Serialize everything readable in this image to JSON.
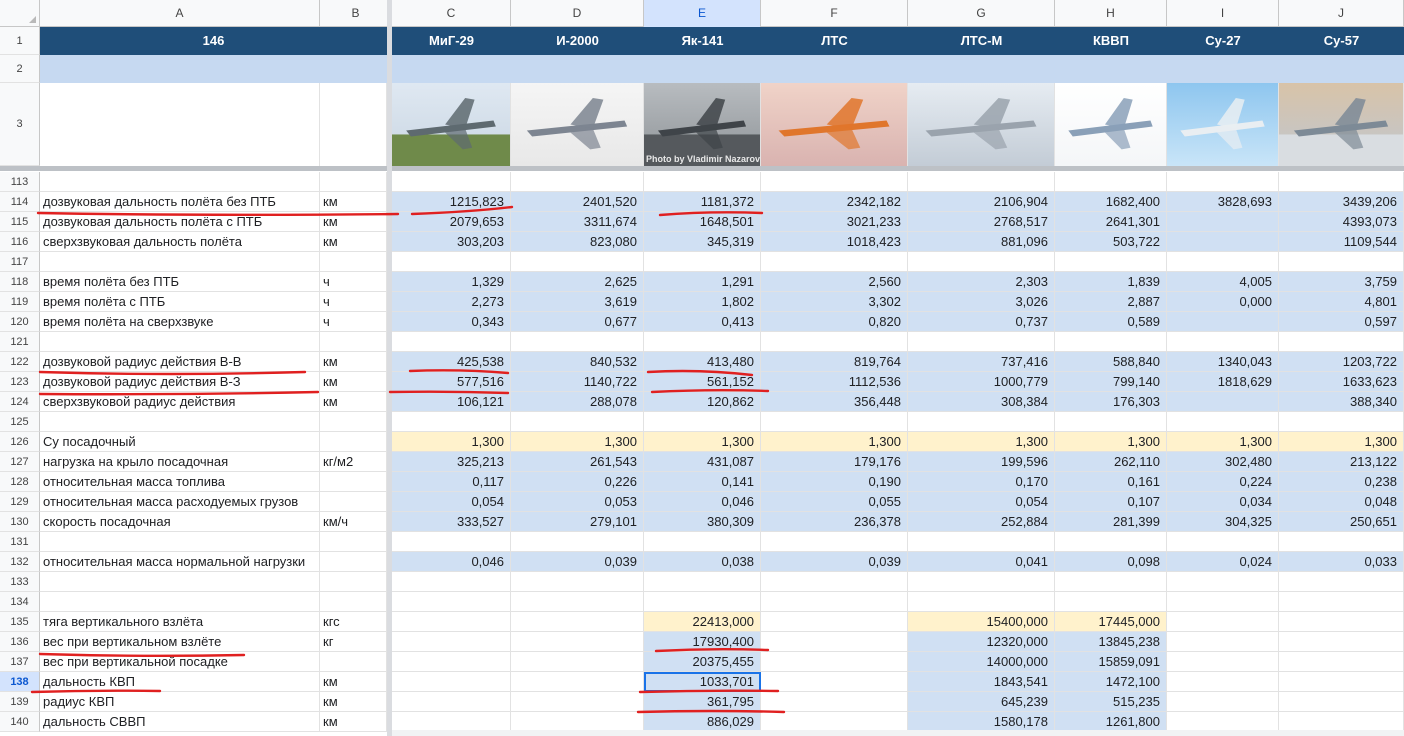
{
  "corner_label": "",
  "columns": [
    "A",
    "B",
    "C",
    "D",
    "E",
    "F",
    "G",
    "H",
    "I",
    "J"
  ],
  "selected_column": "E",
  "header_row": {
    "a1": "146",
    "aircraft": [
      "МиГ-29",
      "И-2000",
      "Як-141",
      "ЛТС",
      "ЛТС-М",
      "КВВП",
      "Су-27",
      "Су-57"
    ]
  },
  "frozen_rows": [
    "1",
    "2",
    "3"
  ],
  "photo_credit": "Photo by Vladimir Nazarov",
  "selected_row": "138",
  "rows": [
    {
      "n": "113",
      "label": "",
      "unit": "",
      "vals": [
        "",
        "",
        "",
        "",
        "",
        "",
        "",
        ""
      ],
      "fill": "none"
    },
    {
      "n": "114",
      "label": "дозвуковая дальность полёта без ПТБ",
      "unit": "км",
      "vals": [
        "1215,823",
        "2401,520",
        "1181,372",
        "2342,182",
        "2106,904",
        "1682,400",
        "3828,693",
        "3439,206"
      ],
      "fill": "blue"
    },
    {
      "n": "115",
      "label": "дозвуковая дальность полёта с ПТБ",
      "unit": "км",
      "vals": [
        "2079,653",
        "3311,674",
        "1648,501",
        "3021,233",
        "2768,517",
        "2641,301",
        "",
        "4393,073"
      ],
      "fill": "blue"
    },
    {
      "n": "116",
      "label": "сверхзвуковая дальность полёта",
      "unit": "км",
      "vals": [
        "303,203",
        "823,080",
        "345,319",
        "1018,423",
        "881,096",
        "503,722",
        "",
        "1109,544"
      ],
      "fill": "blue"
    },
    {
      "n": "117",
      "label": "",
      "unit": "",
      "vals": [
        "",
        "",
        "",
        "",
        "",
        "",
        "",
        ""
      ],
      "fill": "none"
    },
    {
      "n": "118",
      "label": "время полёта без ПТБ",
      "unit": "ч",
      "vals": [
        "1,329",
        "2,625",
        "1,291",
        "2,560",
        "2,303",
        "1,839",
        "4,005",
        "3,759"
      ],
      "fill": "blue"
    },
    {
      "n": "119",
      "label": "время полёта с ПТБ",
      "unit": "ч",
      "vals": [
        "2,273",
        "3,619",
        "1,802",
        "3,302",
        "3,026",
        "2,887",
        "0,000",
        "4,801"
      ],
      "fill": "blue"
    },
    {
      "n": "120",
      "label": "время полёта на сверхзвуке",
      "unit": "ч",
      "vals": [
        "0,343",
        "0,677",
        "0,413",
        "0,820",
        "0,737",
        "0,589",
        "",
        "0,597"
      ],
      "fill": "blue"
    },
    {
      "n": "121",
      "label": "",
      "unit": "",
      "vals": [
        "",
        "",
        "",
        "",
        "",
        "",
        "",
        ""
      ],
      "fill": "none"
    },
    {
      "n": "122",
      "label": "дозвуковой радиус действия  В-В",
      "unit": "км",
      "vals": [
        "425,538",
        "840,532",
        "413,480",
        "819,764",
        "737,416",
        "588,840",
        "1340,043",
        "1203,722"
      ],
      "fill": "blue"
    },
    {
      "n": "123",
      "label": "дозвуковой радиус действия  В-З",
      "unit": "км",
      "vals": [
        "577,516",
        "1140,722",
        "561,152",
        "1112,536",
        "1000,779",
        "799,140",
        "1818,629",
        "1633,623"
      ],
      "fill": "blue"
    },
    {
      "n": "124",
      "label": "сверхзвуковой радиус действия",
      "unit": "км",
      "vals": [
        "106,121",
        "288,078",
        "120,862",
        "356,448",
        "308,384",
        "176,303",
        "",
        "388,340"
      ],
      "fill": "blue"
    },
    {
      "n": "125",
      "label": "",
      "unit": "",
      "vals": [
        "",
        "",
        "",
        "",
        "",
        "",
        "",
        ""
      ],
      "fill": "none"
    },
    {
      "n": "126",
      "label": "Cy посадочный",
      "unit": "",
      "vals": [
        "1,300",
        "1,300",
        "1,300",
        "1,300",
        "1,300",
        "1,300",
        "1,300",
        "1,300"
      ],
      "fill": "yellow"
    },
    {
      "n": "127",
      "label": "нагрузка на крыло посадочная",
      "unit": "кг/м2",
      "vals": [
        "325,213",
        "261,543",
        "431,087",
        "179,176",
        "199,596",
        "262,110",
        "302,480",
        "213,122"
      ],
      "fill": "blue"
    },
    {
      "n": "128",
      "label": "относительная масса топлива",
      "unit": "",
      "vals": [
        "0,117",
        "0,226",
        "0,141",
        "0,190",
        "0,170",
        "0,161",
        "0,224",
        "0,238"
      ],
      "fill": "blue"
    },
    {
      "n": "129",
      "label": "относительная масса расходуемых грузов",
      "unit": "",
      "vals": [
        "0,054",
        "0,053",
        "0,046",
        "0,055",
        "0,054",
        "0,107",
        "0,034",
        "0,048"
      ],
      "fill": "blue"
    },
    {
      "n": "130",
      "label": "скорость посадочная",
      "unit": "км/ч",
      "vals": [
        "333,527",
        "279,101",
        "380,309",
        "236,378",
        "252,884",
        "281,399",
        "304,325",
        "250,651"
      ],
      "fill": "blue"
    },
    {
      "n": "131",
      "label": "",
      "unit": "",
      "vals": [
        "",
        "",
        "",
        "",
        "",
        "",
        "",
        ""
      ],
      "fill": "none"
    },
    {
      "n": "132",
      "label": "относительная масса нормальной нагрузки",
      "unit": "",
      "vals": [
        "0,046",
        "0,039",
        "0,038",
        "0,039",
        "0,041",
        "0,098",
        "0,024",
        "0,033"
      ],
      "fill": "blue"
    },
    {
      "n": "133",
      "label": "",
      "unit": "",
      "vals": [
        "",
        "",
        "",
        "",
        "",
        "",
        "",
        ""
      ],
      "fill": "none"
    },
    {
      "n": "134",
      "label": "",
      "unit": "",
      "vals": [
        "",
        "",
        "",
        "",
        "",
        "",
        "",
        ""
      ],
      "fill": "none"
    },
    {
      "n": "135",
      "label": "тяга вертикального взлёта",
      "unit": "кгс",
      "vals": [
        "",
        "",
        "22413,000",
        "",
        "15400,000",
        "17445,000",
        "",
        ""
      ],
      "fill": "yellow-sparse"
    },
    {
      "n": "136",
      "label": "вес при вертикальном взлёте",
      "unit": "кг",
      "vals": [
        "",
        "",
        "17930,400",
        "",
        "12320,000",
        "13845,238",
        "",
        ""
      ],
      "fill": "blue-sparse"
    },
    {
      "n": "137",
      "label": "вес при вертикальной посадке",
      "unit": "",
      "vals": [
        "",
        "",
        "20375,455",
        "",
        "14000,000",
        "15859,091",
        "",
        ""
      ],
      "fill": "blue-sparse"
    },
    {
      "n": "138",
      "label": "дальность КВП",
      "unit": "км",
      "vals": [
        "",
        "",
        "1033,701",
        "",
        "1843,541",
        "1472,100",
        "",
        ""
      ],
      "fill": "blue-sparse"
    },
    {
      "n": "139",
      "label": "радиус КВП",
      "unit": "км",
      "vals": [
        "",
        "",
        "361,795",
        "",
        "645,239",
        "515,235",
        "",
        ""
      ],
      "fill": "blue-sparse"
    },
    {
      "n": "140",
      "label": "дальность СВВП",
      "unit": "км",
      "vals": [
        "",
        "",
        "886,029",
        "",
        "1580,178",
        "1261,800",
        "",
        ""
      ],
      "fill": "blue-sparse"
    }
  ],
  "colors": {
    "header_bg": "#1f4e79",
    "row2_bg": "#c6d9f1",
    "blue_fill": "#d0e0f3",
    "yellow_fill": "#fff2cc",
    "annotation": "#e02020",
    "selection": "#1a73e8"
  },
  "annotations": "red hand-drawn underlines"
}
